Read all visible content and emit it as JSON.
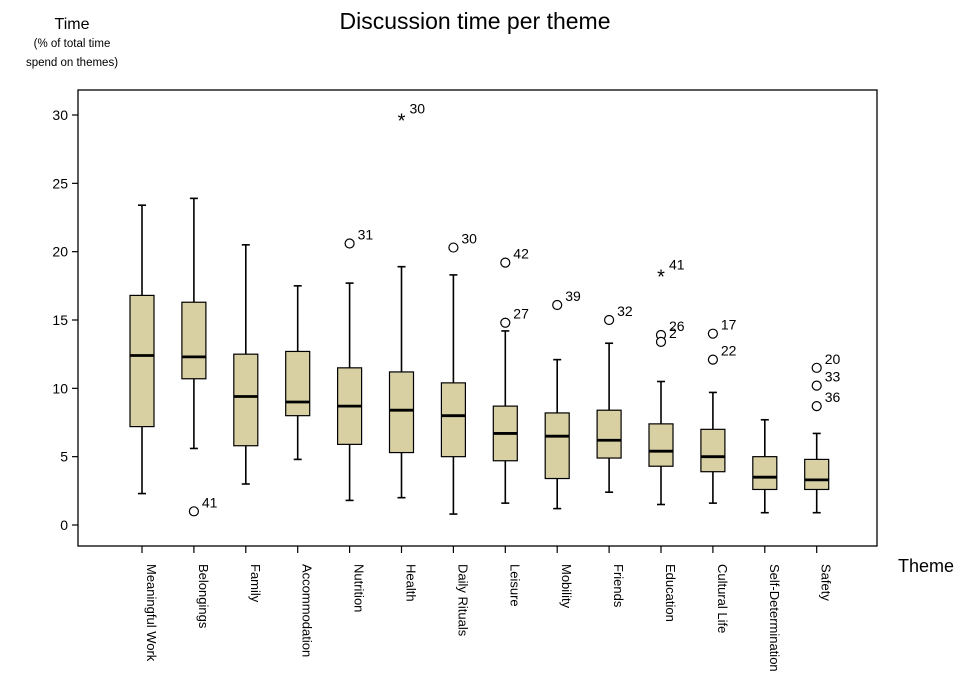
{
  "chart_data": {
    "type": "boxplot",
    "title": "Discussion time per theme",
    "ylabel": "Time",
    "ylabel_sub": [
      "(% of total time",
      "spend on themes)"
    ],
    "xlabel": "Theme",
    "ylim": [
      -1,
      31.5
    ],
    "yticks": [
      0,
      5,
      10,
      15,
      20,
      25,
      30
    ],
    "box_color": "#d8d0a2",
    "categories": [
      {
        "name": "Meaningful Work",
        "min": 2.3,
        "q1": 7.2,
        "median": 12.4,
        "q3": 16.8,
        "max": 23.4,
        "outliers": []
      },
      {
        "name": "Belongings",
        "min": 5.6,
        "q1": 10.7,
        "median": 12.3,
        "q3": 16.3,
        "max": 23.9,
        "outliers": [
          {
            "value": 1.0,
            "label": "41",
            "marker": "circle"
          }
        ]
      },
      {
        "name": "Family",
        "min": 3.0,
        "q1": 5.8,
        "median": 9.4,
        "q3": 12.5,
        "max": 20.5,
        "outliers": []
      },
      {
        "name": "Accommodation",
        "min": 4.8,
        "q1": 8.0,
        "median": 9.0,
        "q3": 12.7,
        "max": 17.5,
        "outliers": []
      },
      {
        "name": "Nutrition",
        "min": 1.8,
        "q1": 5.9,
        "median": 8.7,
        "q3": 11.5,
        "max": 17.7,
        "outliers": [
          {
            "value": 20.6,
            "label": "31",
            "marker": "circle"
          }
        ]
      },
      {
        "name": "Health",
        "min": 2.0,
        "q1": 5.3,
        "median": 8.4,
        "q3": 11.2,
        "max": 18.9,
        "outliers": [
          {
            "value": 29.8,
            "label": "30",
            "marker": "star"
          }
        ]
      },
      {
        "name": "Daily Rituals",
        "min": 0.8,
        "q1": 5.0,
        "median": 8.0,
        "q3": 10.4,
        "max": 18.3,
        "outliers": [
          {
            "value": 20.3,
            "label": "30",
            "marker": "circle"
          }
        ]
      },
      {
        "name": "Leisure",
        "min": 1.6,
        "q1": 4.7,
        "median": 6.7,
        "q3": 8.7,
        "max": 14.2,
        "outliers": [
          {
            "value": 19.2,
            "label": "42",
            "marker": "circle"
          },
          {
            "value": 14.8,
            "label": "27",
            "marker": "circle"
          }
        ]
      },
      {
        "name": "Mobility",
        "min": 1.2,
        "q1": 3.4,
        "median": 6.5,
        "q3": 8.2,
        "max": 12.1,
        "outliers": [
          {
            "value": 16.1,
            "label": "39",
            "marker": "circle"
          }
        ]
      },
      {
        "name": "Friends",
        "min": 2.4,
        "q1": 4.9,
        "median": 6.2,
        "q3": 8.4,
        "max": 13.3,
        "outliers": [
          {
            "value": 15.0,
            "label": "32",
            "marker": "circle"
          }
        ]
      },
      {
        "name": "Education",
        "min": 1.5,
        "q1": 4.3,
        "median": 5.4,
        "q3": 7.4,
        "max": 10.5,
        "outliers": [
          {
            "value": 18.4,
            "label": "41",
            "marker": "star"
          },
          {
            "value": 13.9,
            "label": "26",
            "marker": "circle"
          },
          {
            "value": 13.4,
            "label": "2",
            "marker": "circle"
          }
        ]
      },
      {
        "name": "Cultural Life",
        "min": 1.6,
        "q1": 3.9,
        "median": 5.0,
        "q3": 7.0,
        "max": 9.7,
        "outliers": [
          {
            "value": 14.0,
            "label": "17",
            "marker": "circle"
          },
          {
            "value": 12.1,
            "label": "22",
            "marker": "circle"
          }
        ]
      },
      {
        "name": "Self-Determination",
        "min": 0.9,
        "q1": 2.6,
        "median": 3.5,
        "q3": 5.0,
        "max": 7.7,
        "outliers": []
      },
      {
        "name": "Safety",
        "min": 0.9,
        "q1": 2.6,
        "median": 3.3,
        "q3": 4.8,
        "max": 6.7,
        "outliers": [
          {
            "value": 11.5,
            "label": "20",
            "marker": "circle"
          },
          {
            "value": 10.2,
            "label": "33",
            "marker": "circle"
          },
          {
            "value": 8.7,
            "label": "36",
            "marker": "circle"
          }
        ]
      }
    ]
  }
}
